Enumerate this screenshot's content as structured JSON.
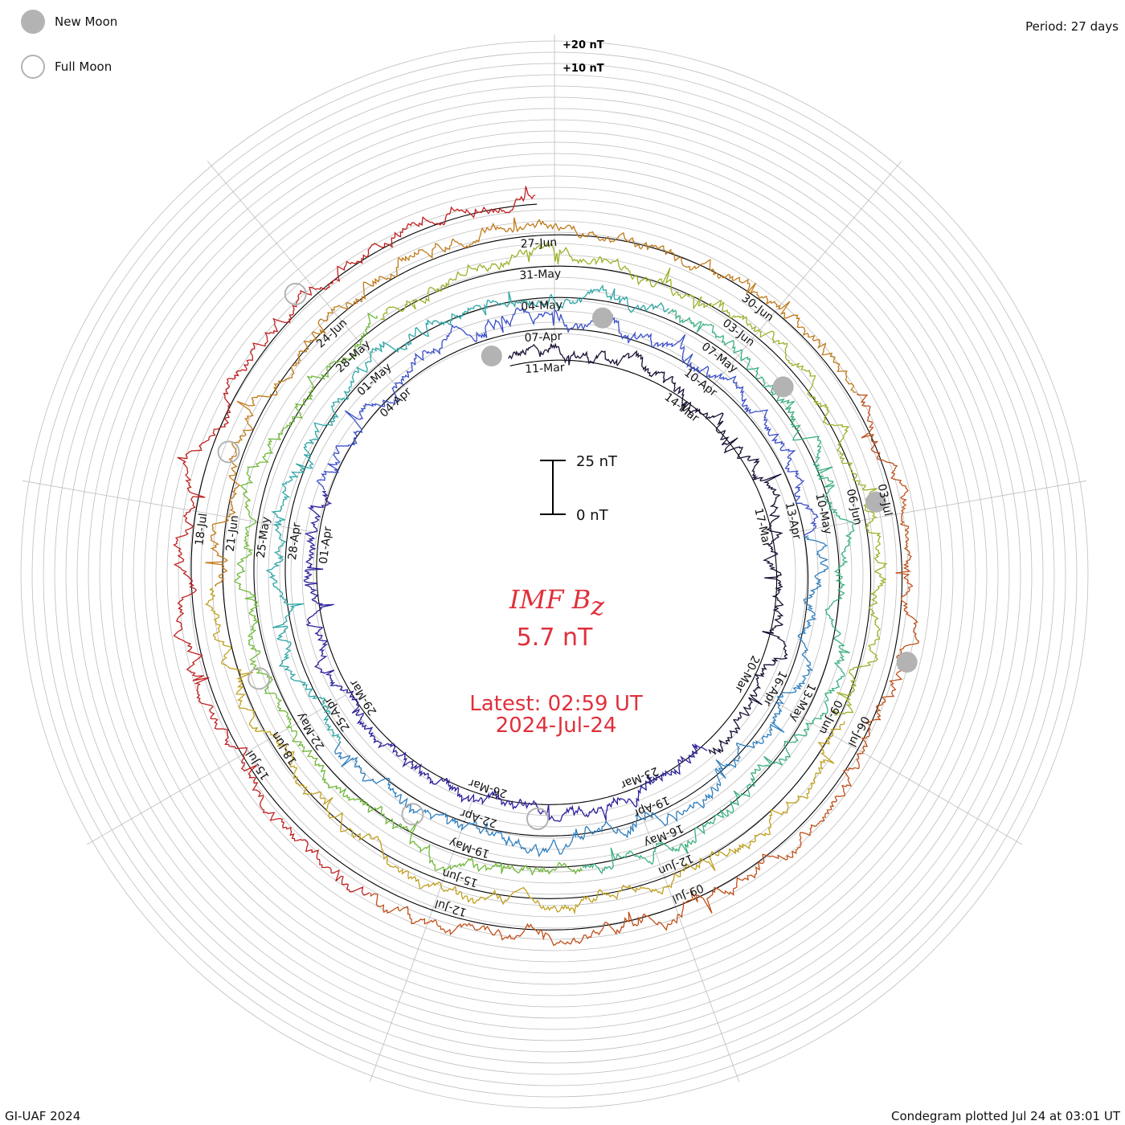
{
  "legend": {
    "new_moon": "New Moon",
    "full_moon": "Full Moon"
  },
  "period_label": "Period: 27 days",
  "footer_left": "GI-UAF 2024",
  "footer_right": "Condegram plotted Jul 24 at 03:01 UT",
  "chart_data": {
    "type": "line",
    "subtype": "polar condegram (spiral, 27-day rotations)",
    "title_main": "IMF B",
    "title_sub": "z",
    "current_value": "5.7 nT",
    "latest_label": "Latest: 02:59 UT",
    "latest_date": "2024-Jul-24",
    "scale_bar": {
      "top_label": "25 nT",
      "bottom_label": "0 nT",
      "span_nT": 25
    },
    "amplitude_labels": [
      "+20 nT",
      "+10 nT"
    ],
    "period_days": 27,
    "rotations": [
      {
        "index": 0,
        "start": "2024-03-10",
        "color": "#1a0f33",
        "date_labels": [
          "11-Mar",
          "14-Mar",
          "17-Mar",
          "20-Mar",
          "23-Mar"
        ]
      },
      {
        "index": 1,
        "start": "2024-03-24",
        "color": "#2a1f9a",
        "date_labels": [
          "26-Mar",
          "29-Mar",
          "01-Apr",
          "04-Apr",
          "07-Apr",
          "10-Apr",
          "13-Apr",
          "16-Apr",
          "19-Apr"
        ]
      },
      {
        "index": 2,
        "start": "2024-04-20",
        "color": "#2f7fbf",
        "date_labels": [
          "22-Apr",
          "25-Apr",
          "28-Apr",
          "01-May",
          "04-May",
          "07-May",
          "10-May",
          "13-May",
          "16-May"
        ]
      },
      {
        "index": 3,
        "start": "2024-05-17",
        "color": "#3ab07e",
        "date_labels": [
          "19-May",
          "22-May",
          "25-May",
          "28-May",
          "31-May",
          "03-Jun",
          "06-Jun",
          "09-Jun",
          "12-Jun"
        ]
      },
      {
        "index": 4,
        "start": "2024-06-13",
        "color": "#9ab22a",
        "date_labels": [
          "15-Jun",
          "18-Jun",
          "21-Jun",
          "24-Jun",
          "27-Jun",
          "30-Jun",
          "03-Jul",
          "06-Jul",
          "09-Jul"
        ]
      },
      {
        "index": 5,
        "start": "2024-07-10",
        "color": "#c0501a",
        "date_labels": [
          "12-Jul",
          "15-Jul",
          "18-Jul"
        ]
      }
    ],
    "trace_colors": [
      "#1a0f33",
      "#2a1f9a",
      "#3a4fc8",
      "#2f7fbf",
      "#2fa6a6",
      "#3ab07e",
      "#70b83a",
      "#9ab22a",
      "#c0a020",
      "#c07a1a",
      "#c0501a",
      "#c02020"
    ],
    "moon_events": [
      {
        "type": "new",
        "date": "2024-03-10"
      },
      {
        "type": "full",
        "date": "2024-03-25"
      },
      {
        "type": "new",
        "date": "2024-04-08"
      },
      {
        "type": "full",
        "date": "2024-04-23"
      },
      {
        "type": "new",
        "date": "2024-05-08"
      },
      {
        "type": "full",
        "date": "2024-05-23"
      },
      {
        "type": "new",
        "date": "2024-06-06"
      },
      {
        "type": "full",
        "date": "2024-06-22"
      },
      {
        "type": "new",
        "date": "2024-07-05"
      },
      {
        "type": "full",
        "date": "2024-07-21"
      }
    ],
    "grid": true,
    "legend_position": "top-left"
  },
  "colors": {
    "accent": "#e0303c",
    "grid": "#bdbdbd",
    "moon": "#b3b3b3"
  }
}
